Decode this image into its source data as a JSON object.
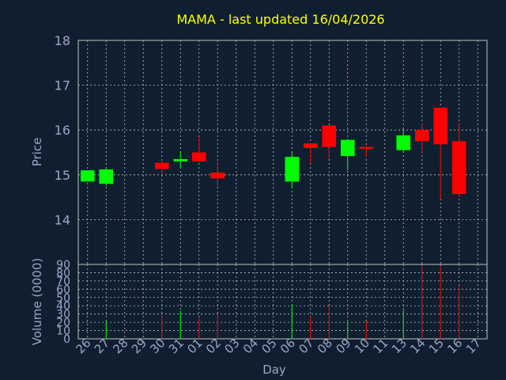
{
  "chart_data": {
    "type": "candlestick",
    "title": "MAMA - last updated 16/04/2026",
    "xlabel": "Day",
    "price_panel": {
      "ylabel": "Price",
      "ylim": [
        13,
        18
      ],
      "yticks": [
        "14",
        "15",
        "16",
        "17",
        "18"
      ],
      "grid": true
    },
    "volume_panel": {
      "ylabel": "Volume (0000)",
      "ylim": [
        0,
        90
      ],
      "yticks": [
        "0",
        "10",
        "20",
        "30",
        "40",
        "50",
        "60",
        "70",
        "80",
        "90"
      ],
      "grid": true
    },
    "x_tick_labels": [
      "26",
      "27",
      "28",
      "29",
      "30",
      "31",
      "01",
      "02",
      "03",
      "04",
      "05",
      "06",
      "07",
      "08",
      "09",
      "10",
      "11",
      "13",
      "14",
      "15",
      "16",
      "17"
    ],
    "candles": [
      {
        "day": "26",
        "open": 14.85,
        "high": 15.1,
        "low": 14.85,
        "close": 15.1,
        "volume": 0
      },
      {
        "day": "27",
        "open": 14.8,
        "high": 15.15,
        "low": 14.75,
        "close": 15.12,
        "volume": 21
      },
      {
        "day": "28",
        "open": null,
        "high": null,
        "low": null,
        "close": null,
        "volume": 0
      },
      {
        "day": "29",
        "open": null,
        "high": null,
        "low": null,
        "close": null,
        "volume": 0
      },
      {
        "day": "30",
        "open": 15.27,
        "high": 15.3,
        "low": 15.0,
        "close": 15.13,
        "volume": 28
      },
      {
        "day": "31",
        "open": 15.3,
        "high": 15.52,
        "low": 15.15,
        "close": 15.35,
        "volume": 34
      },
      {
        "day": "01",
        "open": 15.5,
        "high": 15.85,
        "low": 15.3,
        "close": 15.3,
        "volume": 25
      },
      {
        "day": "02",
        "open": 15.05,
        "high": 15.3,
        "low": 14.75,
        "close": 14.92,
        "volume": 30
      },
      {
        "day": "03",
        "open": null,
        "high": null,
        "low": null,
        "close": null,
        "volume": 0
      },
      {
        "day": "04",
        "open": null,
        "high": null,
        "low": null,
        "close": null,
        "volume": 0
      },
      {
        "day": "05",
        "open": null,
        "high": null,
        "low": null,
        "close": null,
        "volume": 0
      },
      {
        "day": "06",
        "open": 14.85,
        "high": 15.52,
        "low": 14.7,
        "close": 15.4,
        "volume": 42
      },
      {
        "day": "07",
        "open": 15.7,
        "high": 15.7,
        "low": 15.25,
        "close": 15.6,
        "volume": 27
      },
      {
        "day": "08",
        "open": 16.1,
        "high": 16.1,
        "low": 15.35,
        "close": 15.62,
        "volume": 40
      },
      {
        "day": "09",
        "open": 15.42,
        "high": 15.8,
        "low": 15.1,
        "close": 15.78,
        "volume": 20
      },
      {
        "day": "10",
        "open": 15.62,
        "high": 15.65,
        "low": 15.4,
        "close": 15.58,
        "volume": 21
      },
      {
        "day": "13",
        "open": 15.55,
        "high": 16.05,
        "low": 15.5,
        "close": 15.88,
        "volume": 35
      },
      {
        "day": "14",
        "open": 16.0,
        "high": 16.15,
        "low": 15.5,
        "close": 15.75,
        "volume": 88
      },
      {
        "day": "15",
        "open": 16.5,
        "high": 16.5,
        "low": 14.45,
        "close": 15.68,
        "volume": 88
      },
      {
        "day": "16",
        "open": 15.75,
        "high": 16.15,
        "low": 14.5,
        "close": 14.57,
        "volume": 64
      }
    ]
  },
  "colors": {
    "background": "#0f1f30",
    "plot_background": "#0f1f30",
    "grid": "#c0c0c0",
    "axis_text": "#99a8c8",
    "title": "#ffff00",
    "up": "#00ff00",
    "down": "#ff0000"
  }
}
